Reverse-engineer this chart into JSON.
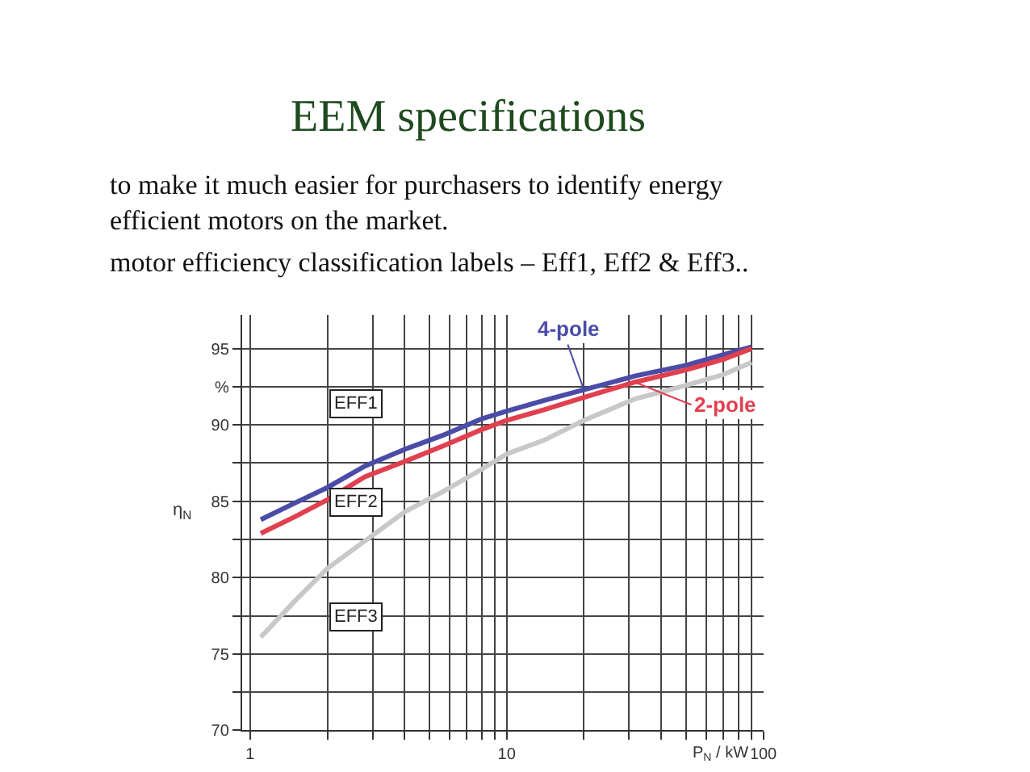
{
  "chart_data": {
    "type": "line",
    "title": "EEM specifications",
    "xlabel": "P$_{N}$ / kW",
    "ylabel": "η$_{N}$",
    "annotations": [
      "to make it much easier for purchasers to identify energy efficient motors on the market.",
      "motor efficiency classification labels – Eff1, Eff2 & Eff3..",
      "EFF1",
      "EFF2",
      "EFF3"
    ],
    "x": [
      1.1,
      1.5,
      2,
      2.8,
      4,
      5.6,
      8,
      10,
      14,
      20,
      31.6,
      50,
      70,
      90
    ],
    "series": [
      {
        "name": "4-pole",
        "color": "#4b4ba8",
        "values": [
          83.8,
          84.9,
          85.9,
          87.3,
          88.4,
          89.3,
          90.4,
          90.9,
          91.6,
          92.3,
          93.2,
          93.9,
          94.6,
          95.1
        ]
      },
      {
        "name": "2-pole",
        "color": "#e0404f",
        "values": [
          82.9,
          84.0,
          85.1,
          86.6,
          87.6,
          88.6,
          89.7,
          90.3,
          91.0,
          91.8,
          92.8,
          93.6,
          94.3,
          95.0
        ]
      },
      {
        "color": "#c8c8c8",
        "values": [
          76.1,
          78.5,
          80.6,
          82.4,
          84.3,
          85.6,
          87.1,
          88.1,
          89.0,
          90.3,
          91.7,
          92.6,
          93.3,
          94.1
        ]
      }
    ],
    "log": "x",
    "xlim": [
      0.93,
      100
    ],
    "ylim": [
      70,
      97.2
    ],
    "xticks": [
      1,
      {
        "value": 2,
        "label": null
      },
      {
        "value": 3,
        "label": null
      },
      {
        "value": 4,
        "label": null
      },
      {
        "value": 5,
        "label": null
      },
      {
        "value": 6,
        "label": null
      },
      {
        "value": 7,
        "label": null
      },
      {
        "value": 8,
        "label": null
      },
      {
        "value": 9,
        "label": null
      },
      10,
      {
        "value": 20,
        "label": null
      },
      {
        "value": 30,
        "label": null
      },
      {
        "value": 40,
        "label": null
      },
      {
        "value": 50,
        "label": null
      },
      {
        "value": 60,
        "label": null
      },
      {
        "value": 70,
        "label": null
      },
      {
        "value": 80,
        "label": null
      },
      {
        "value": 90,
        "label": null
      },
      100
    ],
    "yticks": [
      70,
      {
        "value": 72.5,
        "label": null
      },
      75,
      {
        "value": 77.5,
        "label": null
      },
      80,
      {
        "value": 82.5,
        "label": null
      },
      85,
      {
        "value": 87.5,
        "label": null
      },
      90,
      {
        "value": 92.5,
        "label": "%"
      },
      95
    ],
    "grid": true,
    "marker": "none",
    "line_style": "solid"
  }
}
